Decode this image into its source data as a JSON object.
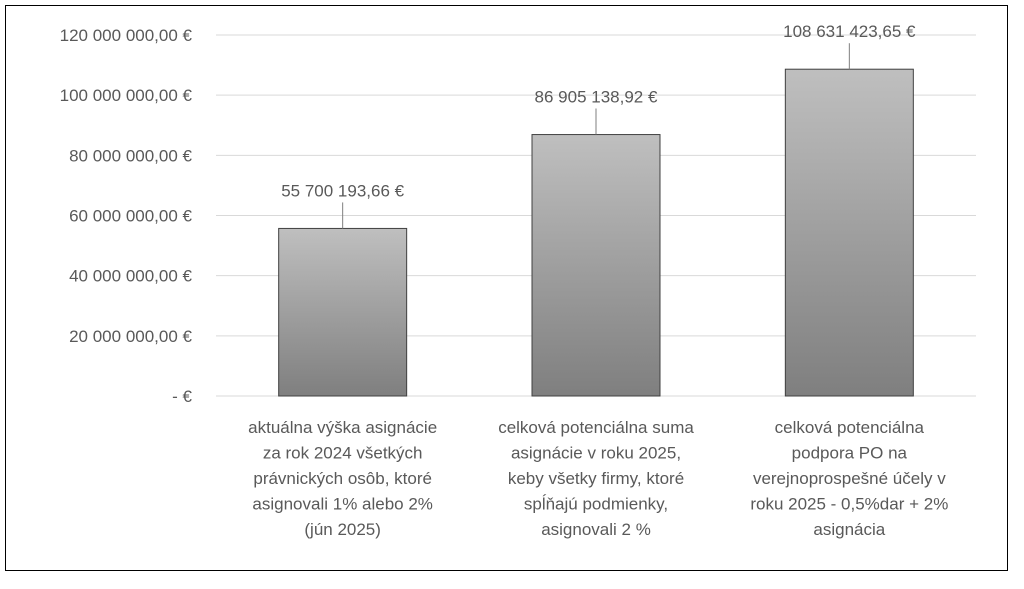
{
  "chart_data": {
    "type": "bar",
    "categories": [
      [
        "aktuálna výška asignácie",
        "za rok 2024 všetkých",
        "právnických osôb, ktoré",
        "asignovali 1% alebo 2%",
        "(jún 2025)"
      ],
      [
        "celková potenciálna suma",
        "asignácie v roku 2025,",
        "keby všetky firmy, ktoré",
        "spĺňajú podmienky,",
        "asignovali 2 %"
      ],
      [
        "celková potenciálna",
        "podpora PO na",
        "verejnoprospešné účely v",
        "roku 2025 - 0,5%dar + 2%",
        "asignácia"
      ]
    ],
    "values": [
      55700193.66,
      86905138.92,
      108631423.65
    ],
    "data_labels": [
      "55 700 193,66 €",
      "86 905 138,92 €",
      "108 631 423,65 €"
    ],
    "yticks": [
      0,
      20000000,
      40000000,
      60000000,
      80000000,
      100000000,
      120000000
    ],
    "ytick_labels": [
      "-  €",
      "20 000 000,00 €",
      "40 000 000,00 €",
      "60 000 000,00 €",
      "80 000 000,00 €",
      "100 000 000,00 €",
      "120 000 000,00 €"
    ],
    "ylim": [
      0,
      120000000
    ],
    "grid": true,
    "title": "",
    "xlabel": "",
    "ylabel": "",
    "colors": {
      "bar_top": "#bfbfbf",
      "bar_bottom": "#7f7f7f",
      "bar_edge": "#404040",
      "grid": "#d9d9d9",
      "text": "#595959"
    }
  }
}
